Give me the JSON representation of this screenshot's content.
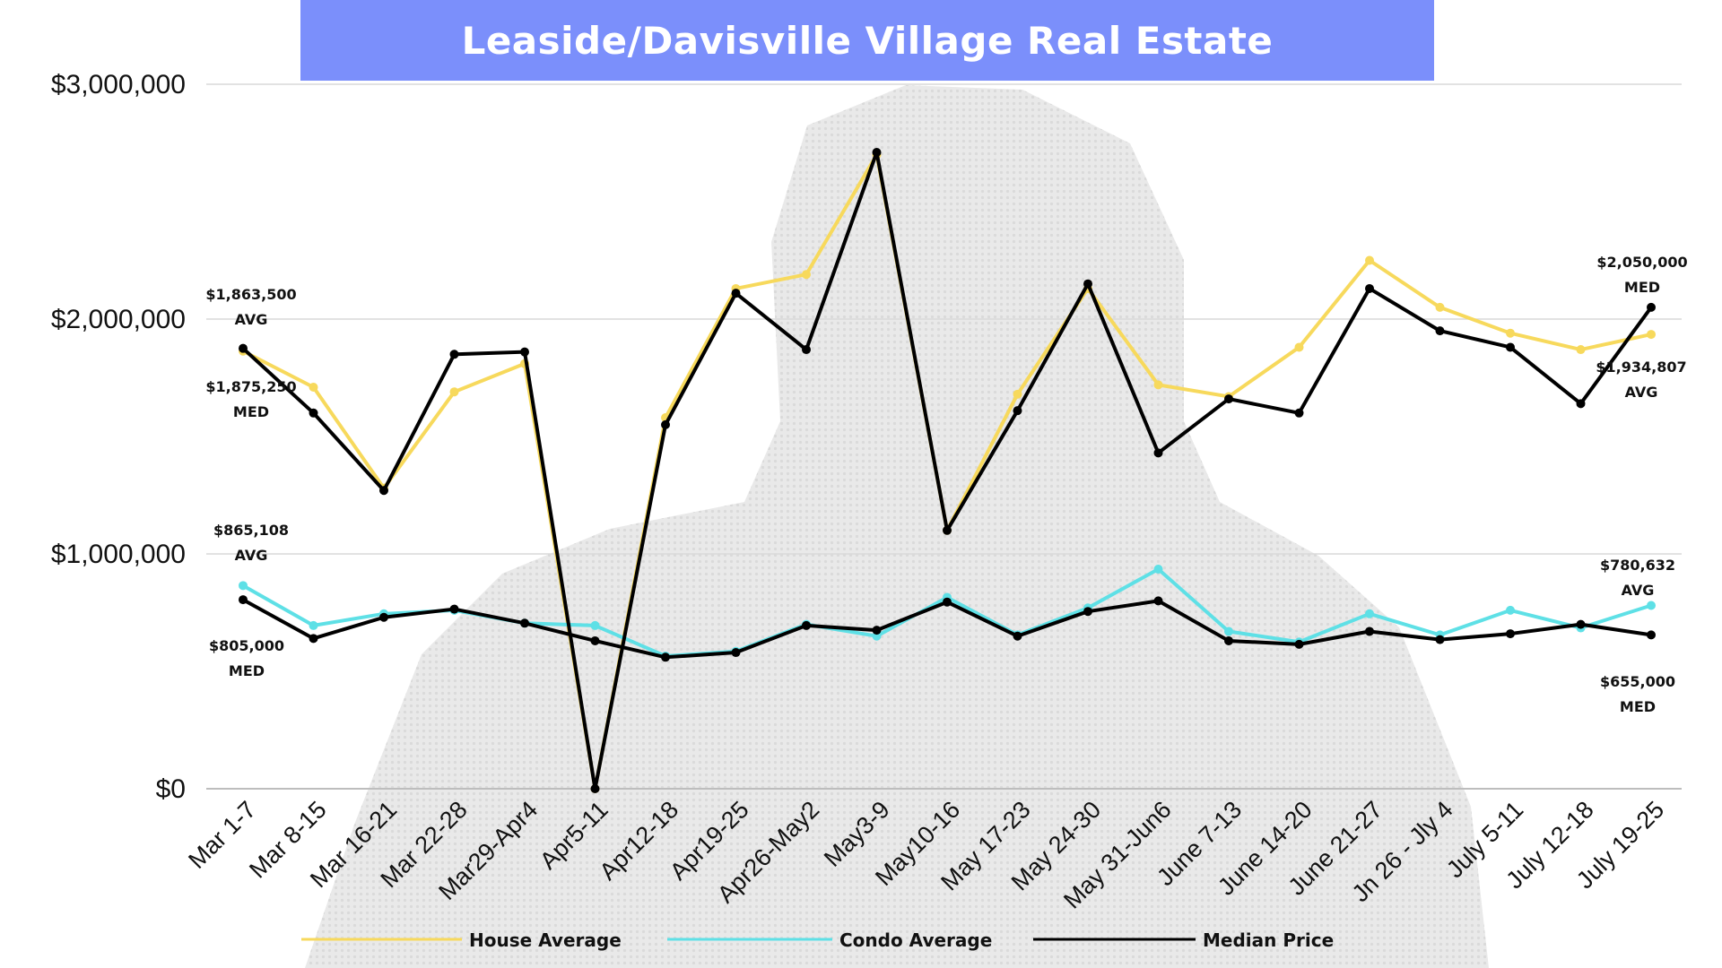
{
  "chart_data": {
    "type": "line",
    "title": "Leaside/Davisville Village Real Estate",
    "xlabel": "",
    "ylabel": "",
    "ylim": [
      0,
      3000000
    ],
    "y_ticks": [
      "$0",
      "$1,000,000",
      "$2,000,000",
      "$3,000,000"
    ],
    "y_tick_values": [
      0,
      1000000,
      2000000,
      3000000
    ],
    "grid": true,
    "legend_position": "bottom",
    "categories": [
      "Mar 1-7",
      "Mar 8-15",
      "Mar 16-21",
      "Mar 22-28",
      "Mar29-Apr4",
      "Apr5-11",
      "Apr12-18",
      "Apr19-25",
      "Apr26-May2",
      "May3-9",
      "May10-16",
      "May 17-23",
      "May 24-30",
      "May 31-Jun6",
      "June 7-13",
      "June 14-20",
      "June 21-27",
      "Jn 26 - Jly 4",
      "July 5-11",
      "July 12-18",
      "July 19-25"
    ],
    "series": [
      {
        "name": "House Average",
        "color": "#f7d95c",
        "values": [
          1863500,
          1710000,
          1280000,
          1690000,
          1810000,
          0,
          1580000,
          2130000,
          2190000,
          2700000,
          1100000,
          1680000,
          2130000,
          1720000,
          1670000,
          1880000,
          2250000,
          2050000,
          1940000,
          1870000,
          1934807
        ]
      },
      {
        "name": "Condo Average",
        "color": "#5ee0e6",
        "values": [
          865108,
          695000,
          745000,
          760000,
          705000,
          695000,
          565000,
          585000,
          700000,
          650000,
          815000,
          655000,
          770000,
          935000,
          670000,
          625000,
          745000,
          655000,
          760000,
          685000,
          780632
        ]
      },
      {
        "name": "Median Price",
        "color": "#000000",
        "values": [
          805000,
          640000,
          730000,
          765000,
          705000,
          630000,
          560000,
          580000,
          695000,
          675000,
          795000,
          650000,
          755000,
          800000,
          630000,
          615000,
          670000,
          635000,
          660000,
          700000,
          655000
        ]
      },
      {
        "name": "Median Price",
        "color": "#000000",
        "values": [
          1875250,
          1600000,
          1270000,
          1850000,
          1860000,
          0,
          1550000,
          2110000,
          1870000,
          2710000,
          1100000,
          1610000,
          2150000,
          1430000,
          1660000,
          1600000,
          2130000,
          1950000,
          1880000,
          1640000,
          2050000
        ]
      }
    ],
    "annotations": [
      {
        "value": "$1,863,500",
        "tag": "AVG"
      },
      {
        "value": "$1,875,250",
        "tag": "MED"
      },
      {
        "value": "$865,108",
        "tag": "AVG"
      },
      {
        "value": "$805,000",
        "tag": "MED"
      },
      {
        "value": "$2,050,000",
        "tag": "MED"
      },
      {
        "value": "$1,934,807",
        "tag": "AVG"
      },
      {
        "value": "$780,632",
        "tag": "AVG"
      },
      {
        "value": "$655,000",
        "tag": "MED"
      }
    ],
    "legend": [
      {
        "label": "House Average",
        "color": "#f7d95c"
      },
      {
        "label": "Condo Average",
        "color": "#5ee0e6"
      },
      {
        "label": "Median Price",
        "color": "#000000"
      }
    ]
  }
}
